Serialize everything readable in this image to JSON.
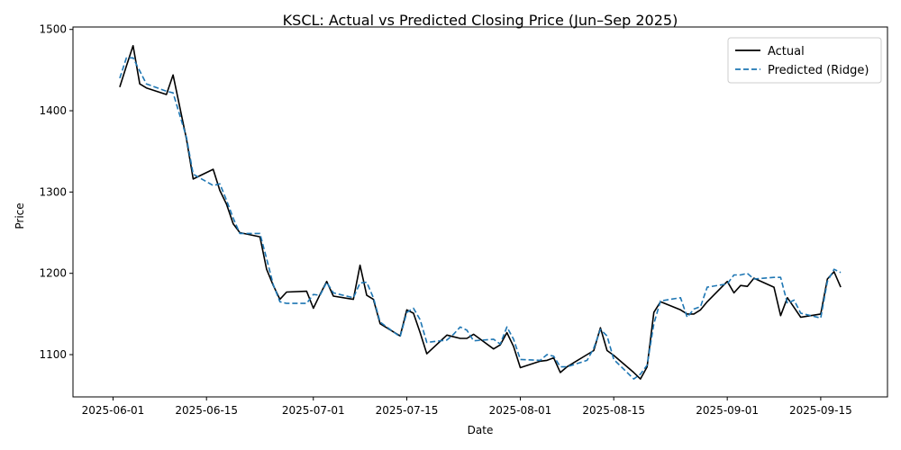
{
  "chart_data": {
    "type": "line",
    "title": "KSCL: Actual vs Predicted Closing Price (Jun–Sep 2025)",
    "xlabel": "Date",
    "ylabel": "Price",
    "x_range": [
      "2025-05-26",
      "2025-09-25"
    ],
    "ylim": [
      1048,
      1503
    ],
    "x_ticks": [
      "2025-06-01",
      "2025-06-15",
      "2025-07-01",
      "2025-07-15",
      "2025-08-01",
      "2025-08-15",
      "2025-09-01",
      "2025-09-15"
    ],
    "y_ticks": [
      1100,
      1200,
      1300,
      1400,
      1500
    ],
    "grid": false,
    "legend_position": "top-right",
    "x": [
      "2025-06-02",
      "2025-06-03",
      "2025-06-04",
      "2025-06-05",
      "2025-06-06",
      "2025-06-09",
      "2025-06-10",
      "2025-06-12",
      "2025-06-13",
      "2025-06-16",
      "2025-06-17",
      "2025-06-18",
      "2025-06-19",
      "2025-06-20",
      "2025-06-23",
      "2025-06-24",
      "2025-06-25",
      "2025-06-26",
      "2025-06-27",
      "2025-06-30",
      "2025-07-01",
      "2025-07-02",
      "2025-07-03",
      "2025-07-04",
      "2025-07-07",
      "2025-07-08",
      "2025-07-09",
      "2025-07-10",
      "2025-07-11",
      "2025-07-14",
      "2025-07-15",
      "2025-07-16",
      "2025-07-17",
      "2025-07-18",
      "2025-07-21",
      "2025-07-22",
      "2025-07-23",
      "2025-07-24",
      "2025-07-25",
      "2025-07-28",
      "2025-07-29",
      "2025-07-30",
      "2025-07-31",
      "2025-08-01",
      "2025-08-04",
      "2025-08-05",
      "2025-08-06",
      "2025-08-07",
      "2025-08-08",
      "2025-08-11",
      "2025-08-12",
      "2025-08-13",
      "2025-08-14",
      "2025-08-15",
      "2025-08-18",
      "2025-08-19",
      "2025-08-20",
      "2025-08-21",
      "2025-08-22",
      "2025-08-25",
      "2025-08-26",
      "2025-08-27",
      "2025-08-28",
      "2025-08-29",
      "2025-09-01",
      "2025-09-02",
      "2025-09-03",
      "2025-09-04",
      "2025-09-05",
      "2025-09-08",
      "2025-09-09",
      "2025-09-10",
      "2025-09-11",
      "2025-09-12",
      "2025-09-15",
      "2025-09-16",
      "2025-09-17",
      "2025-09-18"
    ],
    "series": [
      {
        "name": "Actual",
        "color": "#000000",
        "style": "solid",
        "values": [
          1429,
          1455,
          1480,
          1433,
          1428,
          1420,
          1444,
          1365,
          1316,
          1328,
          1302,
          1285,
          1261,
          1250,
          1245,
          1205,
          1185,
          1168,
          1177,
          1178,
          1157,
          1174,
          1190,
          1172,
          1168,
          1210,
          1173,
          1168,
          1138,
          1123,
          1155,
          1151,
          1127,
          1101,
          1124,
          1122,
          1120,
          1120,
          1125,
          1107,
          1112,
          1127,
          1110,
          1084,
          1092,
          1093,
          1096,
          1078,
          1085,
          1100,
          1105,
          1133,
          1105,
          1099,
          1078,
          1070,
          1085,
          1152,
          1165,
          1155,
          1150,
          1150,
          1155,
          1165,
          1190,
          1176,
          1185,
          1184,
          1194,
          1183,
          1148,
          1170,
          1158,
          1146,
          1150,
          1193,
          1202,
          1183
        ]
      },
      {
        "name": "Predicted (Ridge)",
        "color": "#1f77b4",
        "style": "dashed",
        "values": [
          1440,
          1465,
          1465,
          1449,
          1433,
          1424,
          1422,
          1367,
          1322,
          1308,
          1310,
          1290,
          1268,
          1249,
          1249,
          1218,
          1186,
          1165,
          1163,
          1163,
          1174,
          1173,
          1189,
          1176,
          1170,
          1188,
          1189,
          1170,
          1140,
          1122,
          1152,
          1157,
          1143,
          1115,
          1118,
          1125,
          1134,
          1130,
          1117,
          1119,
          1113,
          1134,
          1119,
          1094,
          1093,
          1100,
          1098,
          1085,
          1085,
          1093,
          1108,
          1131,
          1123,
          1094,
          1070,
          1076,
          1087,
          1138,
          1166,
          1170,
          1146,
          1156,
          1159,
          1183,
          1187,
          1198,
          1198,
          1200,
          1193,
          1195,
          1195,
          1163,
          1167,
          1151,
          1145,
          1190,
          1205,
          1201
        ]
      }
    ]
  }
}
